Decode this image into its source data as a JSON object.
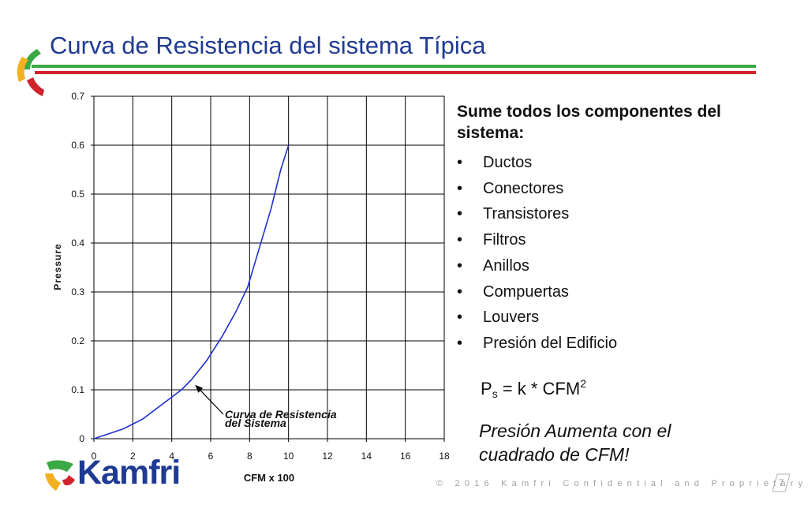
{
  "slide": {
    "title": "Curva de Resistencia del sistema Típica",
    "page_number": "7",
    "footer": "© 2016 Kamfri   Confidential and Proprietary",
    "logo_text": "Kamfri",
    "colors": {
      "title": "#1f3a93",
      "rule_green": "#3aa843",
      "rule_red": "#d0232b",
      "curve": "#1f2fd1",
      "logo_blue": "#1f3a93"
    }
  },
  "panel": {
    "heading": "Sume todos los  componentes del sistema:",
    "items": [
      "Ductos",
      "Conectores",
      "Transistores",
      "Filtros",
      "Anillos",
      "Compuertas",
      "Louvers",
      "Presión del Edificio"
    ],
    "formula": {
      "p": "P",
      "sub": "s",
      "rest": " = k * CFM",
      "sup": "2"
    },
    "note": "Presión Aumenta con el cuadrado de CFM!"
  },
  "chart_data": {
    "type": "line",
    "title": "",
    "xlabel": "CFM x 100",
    "ylabel": "Pressure",
    "xlim": [
      0,
      18
    ],
    "ylim": [
      0,
      0.7
    ],
    "x_ticks": [
      "0",
      "2",
      "4",
      "6",
      "8",
      "10",
      "12",
      "14",
      "16",
      "18"
    ],
    "y_ticks": [
      "0",
      "0.1",
      "0.2",
      "0.3",
      "0.4",
      "0.5",
      "0.6",
      "0.7"
    ],
    "grid": true,
    "series": [
      {
        "x": [
          0,
          1.5,
          2.5,
          3.5,
          4.5,
          5,
          5.8,
          6.6,
          7.3,
          7.9,
          8.5,
          9.1,
          9.6,
          10
        ],
        "values": [
          0,
          0.02,
          0.04,
          0.07,
          0.1,
          0.12,
          0.16,
          0.21,
          0.26,
          0.31,
          0.39,
          0.47,
          0.55,
          0.6
        ]
      }
    ],
    "annotation": {
      "text_line1": "Curva de Resistencia",
      "text_line2": "del Sistema",
      "points_to": [
        5.2,
        0.11
      ]
    }
  }
}
